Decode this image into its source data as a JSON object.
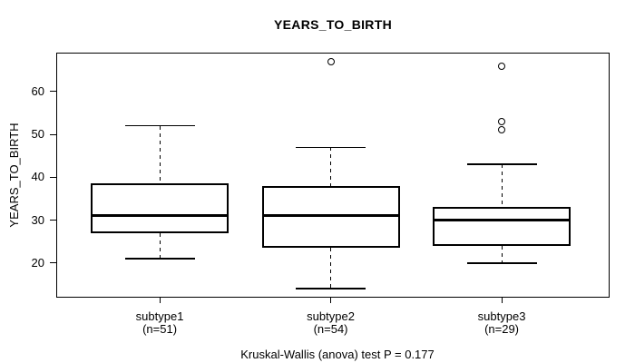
{
  "chart_data": {
    "type": "boxplot",
    "title": "YEARS_TO_BIRTH",
    "ylabel": "YEARS_TO_BIRTH",
    "xlabel": "",
    "caption": "Kruskal-Wallis (anova) test P = 0.177",
    "ylim": [
      11.9,
      69.1
    ],
    "yticks": [
      20,
      30,
      40,
      50,
      60
    ],
    "grid": false,
    "legend": false,
    "line_color": "#000000",
    "background_color": "#ffffff",
    "groups": [
      {
        "label": "subtype1",
        "n_label": "(n=51)",
        "n": 51,
        "whisker_low": 21,
        "q1": 27,
        "median": 31,
        "q3": 38.5,
        "whisker_high": 52,
        "outliers": []
      },
      {
        "label": "subtype2",
        "n_label": "(n=54)",
        "n": 54,
        "whisker_low": 14,
        "q1": 23.5,
        "median": 31,
        "q3": 38,
        "whisker_high": 47,
        "outliers": [
          67
        ]
      },
      {
        "label": "subtype3",
        "n_label": "(n=29)",
        "n": 29,
        "whisker_low": 20,
        "q1": 24,
        "median": 30,
        "q3": 33,
        "whisker_high": 43,
        "outliers": [
          51,
          53,
          66
        ]
      }
    ]
  }
}
